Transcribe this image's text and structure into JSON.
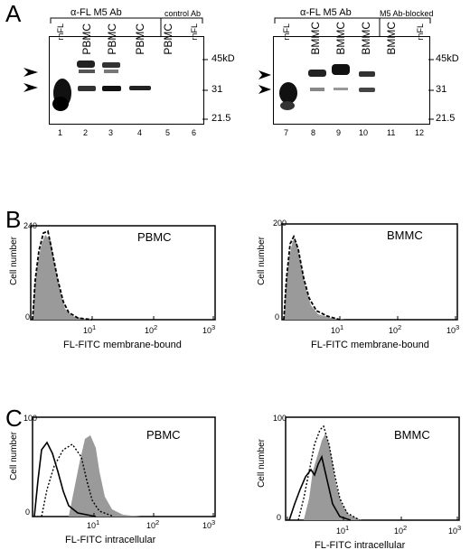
{
  "panels": {
    "a": {
      "letter": "A",
      "left": {
        "header_main": "α-FL M5 Ab",
        "header_control": "control Ab",
        "lanes": [
          "rhFL",
          "PBMC",
          "PBMC",
          "PBMC",
          "PBMC",
          "rhFL"
        ],
        "numbers": [
          "1",
          "2",
          "3",
          "4",
          "5",
          "6"
        ]
      },
      "right": {
        "header_main": "α-FL M5 Ab",
        "header_control": "M5 Ab-blocked",
        "lanes": [
          "rhFL",
          "BMMC",
          "BMMC",
          "BMMC",
          "BMMC",
          "rhFL"
        ],
        "numbers": [
          "7",
          "8",
          "9",
          "10",
          "11",
          "12"
        ]
      },
      "markers": [
        "45kD",
        "31",
        "21.5"
      ]
    },
    "b": {
      "letter": "B",
      "left": {
        "sample": "PBMC",
        "ylabel": "Cell number",
        "xlabel": "FL-FITC membrane-bound",
        "ymax": "240"
      },
      "right": {
        "sample": "BMMC",
        "ylabel": "Cell number",
        "xlabel": "FL-FITC membrane-bound",
        "ymax": "200"
      }
    },
    "c": {
      "letter": "C",
      "left": {
        "sample": "PBMC",
        "ylabel": "Cell number",
        "xlabel": "FL-FITC  intracellular",
        "ymax": "100"
      },
      "right": {
        "sample": "BMMC",
        "ylabel": "Cell number",
        "xlabel": "FL-FITC  intracellular",
        "ymax": "100"
      }
    },
    "ticks": {
      "t0": "0",
      "t1": "1",
      "t2": "2",
      "t3": "3"
    },
    "tick_base": "10"
  }
}
